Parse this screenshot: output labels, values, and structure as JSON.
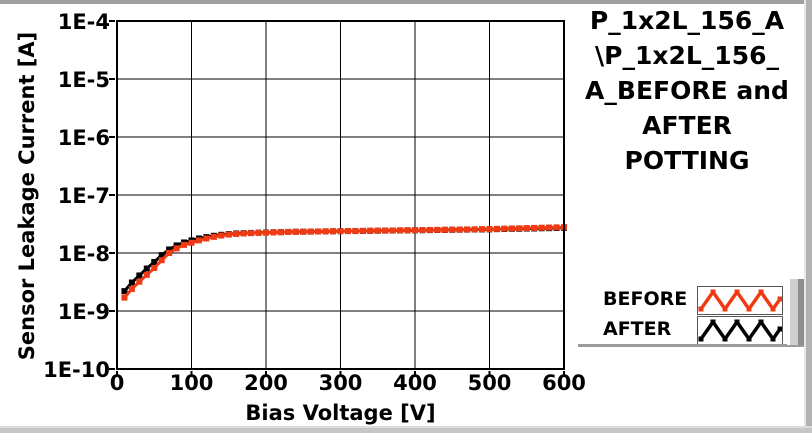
{
  "title": {
    "text": "P_1x2L_156_A\\P_1x2L_156_A_BEFORE and AFTER POTTING",
    "display": "P_1x2L_156_A\n\\P_1x2L_156_\nA_BEFORE and\nAFTER\nPOTTING"
  },
  "legend": {
    "items": [
      {
        "label": "BEFORE",
        "color": "#f03a14"
      },
      {
        "label": "AFTER",
        "color": "#000000"
      }
    ]
  },
  "colors": {
    "before": "#f03a14",
    "after": "#000000",
    "grid": "#000000",
    "frame": "#000000",
    "plot_bg": "#ffffff"
  },
  "chart_data": {
    "type": "line",
    "title": "P_1x2L_156_A\\P_1x2L_156_A_BEFORE and AFTER POTTING",
    "xlabel": "Bias Voltage [V]",
    "ylabel": "Sensor Leakage Current [A]",
    "xlim": [
      0,
      600
    ],
    "ylim": [
      1e-10,
      0.0001
    ],
    "yscale": "log",
    "grid": true,
    "legend_position": "right",
    "x_ticks": [
      {
        "value": 0,
        "label": "0"
      },
      {
        "value": 100,
        "label": "100"
      },
      {
        "value": 200,
        "label": "200"
      },
      {
        "value": 300,
        "label": "300"
      },
      {
        "value": 400,
        "label": "400"
      },
      {
        "value": 500,
        "label": "500"
      },
      {
        "value": 600,
        "label": "600"
      }
    ],
    "y_ticks": [
      {
        "value": 0.0001,
        "label": "1E-4"
      },
      {
        "value": 1e-05,
        "label": "1E-5"
      },
      {
        "value": 1e-06,
        "label": "1E-6"
      },
      {
        "value": 1e-07,
        "label": "1E-7"
      },
      {
        "value": 1e-08,
        "label": "1E-8"
      },
      {
        "value": 1e-09,
        "label": "1E-9"
      },
      {
        "value": 1e-10,
        "label": "1E-10"
      }
    ],
    "x": [
      10,
      20,
      30,
      40,
      50,
      60,
      70,
      80,
      90,
      100,
      110,
      120,
      130,
      140,
      150,
      160,
      170,
      180,
      190,
      200,
      210,
      220,
      230,
      240,
      250,
      260,
      270,
      280,
      290,
      300,
      310,
      320,
      330,
      340,
      350,
      360,
      370,
      380,
      390,
      400,
      410,
      420,
      430,
      440,
      450,
      460,
      470,
      480,
      490,
      500,
      510,
      520,
      530,
      540,
      550,
      560,
      570,
      580,
      590,
      600
    ],
    "series": [
      {
        "name": "BEFORE",
        "color": "#f03a14",
        "marker": "square",
        "values": [
          1.7e-09,
          2.4e-09,
          3.2e-09,
          4.2e-09,
          5.5e-09,
          7.5e-09,
          1e-08,
          1.2e-08,
          1.38e-08,
          1.5e-08,
          1.65e-08,
          1.78e-08,
          1.9e-08,
          2e-08,
          2.08e-08,
          2.13e-08,
          2.17e-08,
          2.2e-08,
          2.22e-08,
          2.24e-08,
          2.26e-08,
          2.28e-08,
          2.3e-08,
          2.32e-08,
          2.33e-08,
          2.34e-08,
          2.35e-08,
          2.36e-08,
          2.37e-08,
          2.38e-08,
          2.39e-08,
          2.4e-08,
          2.41e-08,
          2.42e-08,
          2.43e-08,
          2.44e-08,
          2.45e-08,
          2.46e-08,
          2.47e-08,
          2.48e-08,
          2.49e-08,
          2.5e-08,
          2.51e-08,
          2.52e-08,
          2.53e-08,
          2.54e-08,
          2.55e-08,
          2.56e-08,
          2.58e-08,
          2.59e-08,
          2.61e-08,
          2.63e-08,
          2.65e-08,
          2.67e-08,
          2.69e-08,
          2.71e-08,
          2.73e-08,
          2.75e-08,
          2.77e-08,
          2.8e-08
        ]
      },
      {
        "name": "AFTER",
        "color": "#000000",
        "marker": "square",
        "values": [
          2.2e-09,
          3.1e-09,
          4.1e-09,
          5.4e-09,
          7e-09,
          9.2e-09,
          1.15e-08,
          1.35e-08,
          1.52e-08,
          1.65e-08,
          1.78e-08,
          1.88e-08,
          1.98e-08,
          2.06e-08,
          2.12e-08,
          2.17e-08,
          2.2e-08,
          2.22e-08,
          2.24e-08,
          2.26e-08,
          2.28e-08,
          2.29e-08,
          2.31e-08,
          2.32e-08,
          2.33e-08,
          2.34e-08,
          2.35e-08,
          2.36e-08,
          2.37e-08,
          2.38e-08,
          2.39e-08,
          2.39e-08,
          2.4e-08,
          2.41e-08,
          2.42e-08,
          2.43e-08,
          2.44e-08,
          2.45e-08,
          2.46e-08,
          2.46e-08,
          2.47e-08,
          2.48e-08,
          2.49e-08,
          2.5e-08,
          2.51e-08,
          2.52e-08,
          2.53e-08,
          2.54e-08,
          2.55e-08,
          2.56e-08,
          2.58e-08,
          2.59e-08,
          2.61e-08,
          2.62e-08,
          2.64e-08,
          2.65e-08,
          2.67e-08,
          2.68e-08,
          2.7e-08,
          2.72e-08
        ]
      }
    ]
  }
}
